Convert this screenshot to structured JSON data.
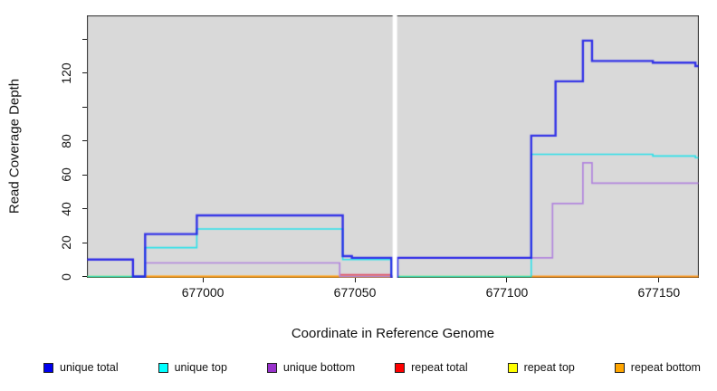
{
  "chart_data": {
    "type": "line",
    "subtype": "step",
    "title": "",
    "xlabel": "Coordinate in Reference Genome",
    "ylabel": "Read Coverage Depth",
    "x_range": [
      676962,
      677163
    ],
    "y_range": [
      0,
      152
    ],
    "plot_background": "#d9d9d9",
    "box_color": "#2a2a2a",
    "grid": false,
    "legend_position": "bottom",
    "gap": {
      "from": 677062.4,
      "to": 677063.9
    },
    "x_ticks": [
      {
        "value": 677000,
        "label": "677000"
      },
      {
        "value": 677050,
        "label": "677050"
      },
      {
        "value": 677100,
        "label": "677100"
      },
      {
        "value": 677150,
        "label": "677150"
      }
    ],
    "y_ticks": [
      {
        "value": 0,
        "label": "0"
      },
      {
        "value": 20,
        "label": "20"
      },
      {
        "value": 40,
        "label": "40"
      },
      {
        "value": 60,
        "label": "60"
      },
      {
        "value": 80,
        "label": "80"
      },
      {
        "value": 100,
        "label": ""
      },
      {
        "value": 120,
        "label": "120"
      },
      {
        "value": 140,
        "label": ""
      }
    ],
    "series": [
      {
        "name": "repeat top",
        "line_color": "#FFEE00",
        "width": 1.6,
        "alpha": 1,
        "segments": [
          [
            [
              676962,
              0
            ],
            [
              677062,
              0
            ]
          ],
          [
            [
              677064,
              0
            ],
            [
              677108,
              0
            ]
          ]
        ]
      },
      {
        "name": "repeat bottom",
        "line_color": "#FF9A1F",
        "width": 2.0,
        "alpha": 1,
        "segments": [
          [
            [
              676981,
              0
            ],
            [
              677062,
              0
            ]
          ],
          [
            [
              677108,
              0
            ],
            [
              677163,
              0
            ]
          ]
        ]
      },
      {
        "name": "repeat total",
        "line_color": "#E0506E",
        "width": 1.6,
        "alpha": 1,
        "segments": [
          [
            [
              677045,
              1
            ],
            [
              677062,
              1
            ]
          ]
        ]
      },
      {
        "name": "unique bottom",
        "line_color": "#B286DD",
        "width": 1.7,
        "alpha": 1,
        "segments": [
          [
            [
              676962,
              10
            ],
            [
              676977,
              0
            ],
            [
              676981,
              8
            ],
            [
              677045,
              0
            ],
            [
              677062,
              0
            ]
          ],
          [
            [
              677064,
              11
            ],
            [
              677115,
              43
            ],
            [
              677125,
              67
            ],
            [
              677128,
              55
            ],
            [
              677163,
              55
            ]
          ]
        ]
      },
      {
        "name": "unique top",
        "line_color": "#00E2EE",
        "width": 1.6,
        "alpha": 0.8,
        "segments": [
          [
            [
              676962,
              0
            ],
            [
              676981,
              17
            ],
            [
              676998,
              28
            ],
            [
              677046,
              10
            ],
            [
              677062,
              0
            ]
          ],
          [
            [
              677064,
              0
            ],
            [
              677108,
              72
            ],
            [
              677148,
              71
            ],
            [
              677162,
              70
            ],
            [
              677163,
              70
            ]
          ]
        ]
      },
      {
        "name": "unique total",
        "line_color": "#2020E8",
        "width": 2.4,
        "alpha": 0.9,
        "segments": [
          [
            [
              676962,
              10
            ],
            [
              676977,
              0
            ],
            [
              676981,
              25
            ],
            [
              676998,
              36
            ],
            [
              677046,
              12
            ],
            [
              677049,
              11
            ],
            [
              677062,
              0
            ],
            [
              677064,
              11
            ],
            [
              677108,
              83
            ],
            [
              677116,
              115
            ],
            [
              677125,
              139
            ],
            [
              677128,
              127
            ],
            [
              677148,
              126
            ],
            [
              677162,
              124
            ],
            [
              677163,
              124
            ]
          ]
        ]
      }
    ],
    "legend": [
      {
        "label": "unique total",
        "color": "#0000EE"
      },
      {
        "label": "unique top",
        "color": "#00FFFF"
      },
      {
        "label": "unique bottom",
        "color": "#9932CC"
      },
      {
        "label": "repeat total",
        "color": "#FF0000"
      },
      {
        "label": "repeat top",
        "color": "#FFFF00"
      },
      {
        "label": "repeat bottom",
        "color": "#FFA500"
      }
    ]
  }
}
